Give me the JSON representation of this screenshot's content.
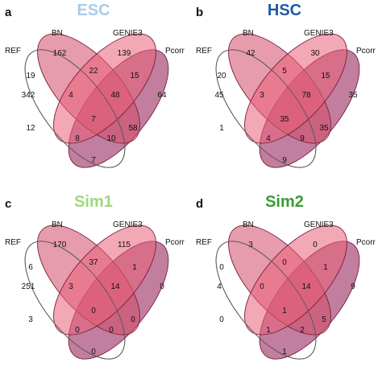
{
  "colors": {
    "ref_fill": "#ffffff",
    "ref_stroke": "#5a5a5a",
    "bn": "#d24a68",
    "genie3": "#e9607a",
    "pcorr": "#9c2e62",
    "overlap_stroke": "#7a1f3c"
  },
  "set_labels": {
    "ref": "REF",
    "bn": "BN",
    "genie3": "GENIE3",
    "pcorr": "Pcorr"
  },
  "panels": [
    {
      "letter": "a",
      "title": "ESC",
      "title_color": "#a9cbe6",
      "counts": {
        "bn_only": "162",
        "genie3_only": "139",
        "ref_only": "342",
        "pcorr_only": "64",
        "ref_bn": "19",
        "bn_genie3": "22",
        "genie3_pcorr": "15",
        "ref_bn_genie3": "4",
        "bn_genie3_pcorr": "48",
        "ref_genie3": "12",
        "all": "7",
        "ref_bn_pcorr": "58",
        "ref_genie3_pcorr": "8",
        "bn_pcorr": "10",
        "ref_pcorr": "7"
      }
    },
    {
      "letter": "b",
      "title": "HSC",
      "title_color": "#1f5aa6",
      "counts": {
        "bn_only": "42",
        "genie3_only": "30",
        "ref_only": "45",
        "pcorr_only": "35",
        "ref_bn": "20",
        "bn_genie3": "5",
        "genie3_pcorr": "15",
        "ref_bn_genie3": "3",
        "bn_genie3_pcorr": "78",
        "ref_genie3": "1",
        "all": "35",
        "ref_bn_pcorr": "35",
        "ref_genie3_pcorr": "4",
        "bn_pcorr": "9",
        "ref_pcorr": "9"
      }
    },
    {
      "letter": "c",
      "title": "Sim1",
      "title_color": "#9fd77e",
      "counts": {
        "bn_only": "170",
        "genie3_only": "115",
        "ref_only": "251",
        "pcorr_only": "0",
        "ref_bn": "6",
        "bn_genie3": "37",
        "genie3_pcorr": "1",
        "ref_bn_genie3": "3",
        "bn_genie3_pcorr": "14",
        "ref_genie3": "3",
        "all": "0",
        "ref_bn_pcorr": "0",
        "ref_genie3_pcorr": "0",
        "bn_pcorr": "0",
        "ref_pcorr": "0"
      }
    },
    {
      "letter": "d",
      "title": "Sim2",
      "title_color": "#3a9a34",
      "counts": {
        "bn_only": "3",
        "genie3_only": "0",
        "ref_only": "4",
        "pcorr_only": "9",
        "ref_bn": "0",
        "bn_genie3": "0",
        "genie3_pcorr": "1",
        "ref_bn_genie3": "0",
        "bn_genie3_pcorr": "14",
        "ref_genie3": "0",
        "all": "1",
        "ref_bn_pcorr": "5",
        "ref_genie3_pcorr": "1",
        "bn_pcorr": "2",
        "ref_pcorr": "1"
      }
    }
  ]
}
